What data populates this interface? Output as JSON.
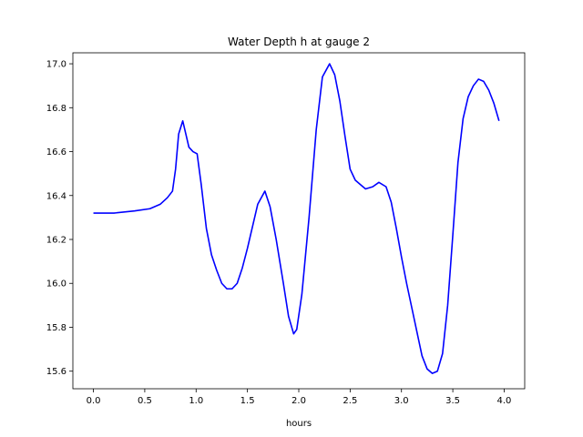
{
  "chart_data": {
    "type": "line",
    "title": "Water Depth h at gauge 2",
    "xlabel": "hours",
    "ylabel": "",
    "xlim": [
      -0.2,
      4.2
    ],
    "ylim": [
      15.52,
      17.05
    ],
    "grid": false,
    "x_ticks": [
      0.0,
      0.5,
      1.0,
      1.5,
      2.0,
      2.5,
      3.0,
      3.5,
      4.0
    ],
    "x_tick_labels": [
      "0.0",
      "0.5",
      "1.0",
      "1.5",
      "2.0",
      "2.5",
      "3.0",
      "3.5",
      "4.0"
    ],
    "y_ticks": [
      15.6,
      15.8,
      16.0,
      16.2,
      16.4,
      16.6,
      16.8,
      17.0
    ],
    "y_tick_labels": [
      "15.6",
      "15.8",
      "16.0",
      "16.2",
      "16.4",
      "16.6",
      "16.8",
      "17.0"
    ],
    "series": [
      {
        "color": "#0000ff",
        "points": [
          [
            0.0,
            16.32
          ],
          [
            0.2,
            16.32
          ],
          [
            0.4,
            16.33
          ],
          [
            0.55,
            16.34
          ],
          [
            0.65,
            16.36
          ],
          [
            0.72,
            16.39
          ],
          [
            0.77,
            16.42
          ],
          [
            0.8,
            16.52
          ],
          [
            0.83,
            16.68
          ],
          [
            0.87,
            16.74
          ],
          [
            0.9,
            16.68
          ],
          [
            0.93,
            16.62
          ],
          [
            0.97,
            16.6
          ],
          [
            1.01,
            16.59
          ],
          [
            1.05,
            16.45
          ],
          [
            1.1,
            16.25
          ],
          [
            1.15,
            16.13
          ],
          [
            1.2,
            16.06
          ],
          [
            1.25,
            16.0
          ],
          [
            1.3,
            15.975
          ],
          [
            1.35,
            15.975
          ],
          [
            1.4,
            16.0
          ],
          [
            1.45,
            16.07
          ],
          [
            1.5,
            16.16
          ],
          [
            1.55,
            16.26
          ],
          [
            1.6,
            16.36
          ],
          [
            1.67,
            16.42
          ],
          [
            1.72,
            16.35
          ],
          [
            1.78,
            16.2
          ],
          [
            1.85,
            16.0
          ],
          [
            1.9,
            15.85
          ],
          [
            1.95,
            15.77
          ],
          [
            1.98,
            15.79
          ],
          [
            2.03,
            15.95
          ],
          [
            2.1,
            16.3
          ],
          [
            2.17,
            16.7
          ],
          [
            2.23,
            16.94
          ],
          [
            2.3,
            17.0
          ],
          [
            2.35,
            16.95
          ],
          [
            2.4,
            16.83
          ],
          [
            2.45,
            16.67
          ],
          [
            2.5,
            16.52
          ],
          [
            2.55,
            16.47
          ],
          [
            2.6,
            16.45
          ],
          [
            2.65,
            16.43
          ],
          [
            2.72,
            16.44
          ],
          [
            2.78,
            16.46
          ],
          [
            2.85,
            16.44
          ],
          [
            2.9,
            16.37
          ],
          [
            2.95,
            16.25
          ],
          [
            3.0,
            16.12
          ],
          [
            3.05,
            16.0
          ],
          [
            3.1,
            15.89
          ],
          [
            3.15,
            15.78
          ],
          [
            3.2,
            15.67
          ],
          [
            3.25,
            15.61
          ],
          [
            3.3,
            15.59
          ],
          [
            3.35,
            15.6
          ],
          [
            3.4,
            15.68
          ],
          [
            3.45,
            15.9
          ],
          [
            3.5,
            16.22
          ],
          [
            3.55,
            16.55
          ],
          [
            3.6,
            16.75
          ],
          [
            3.65,
            16.85
          ],
          [
            3.7,
            16.9
          ],
          [
            3.75,
            16.93
          ],
          [
            3.8,
            16.92
          ],
          [
            3.85,
            16.88
          ],
          [
            3.9,
            16.82
          ],
          [
            3.95,
            16.74
          ]
        ]
      }
    ]
  }
}
